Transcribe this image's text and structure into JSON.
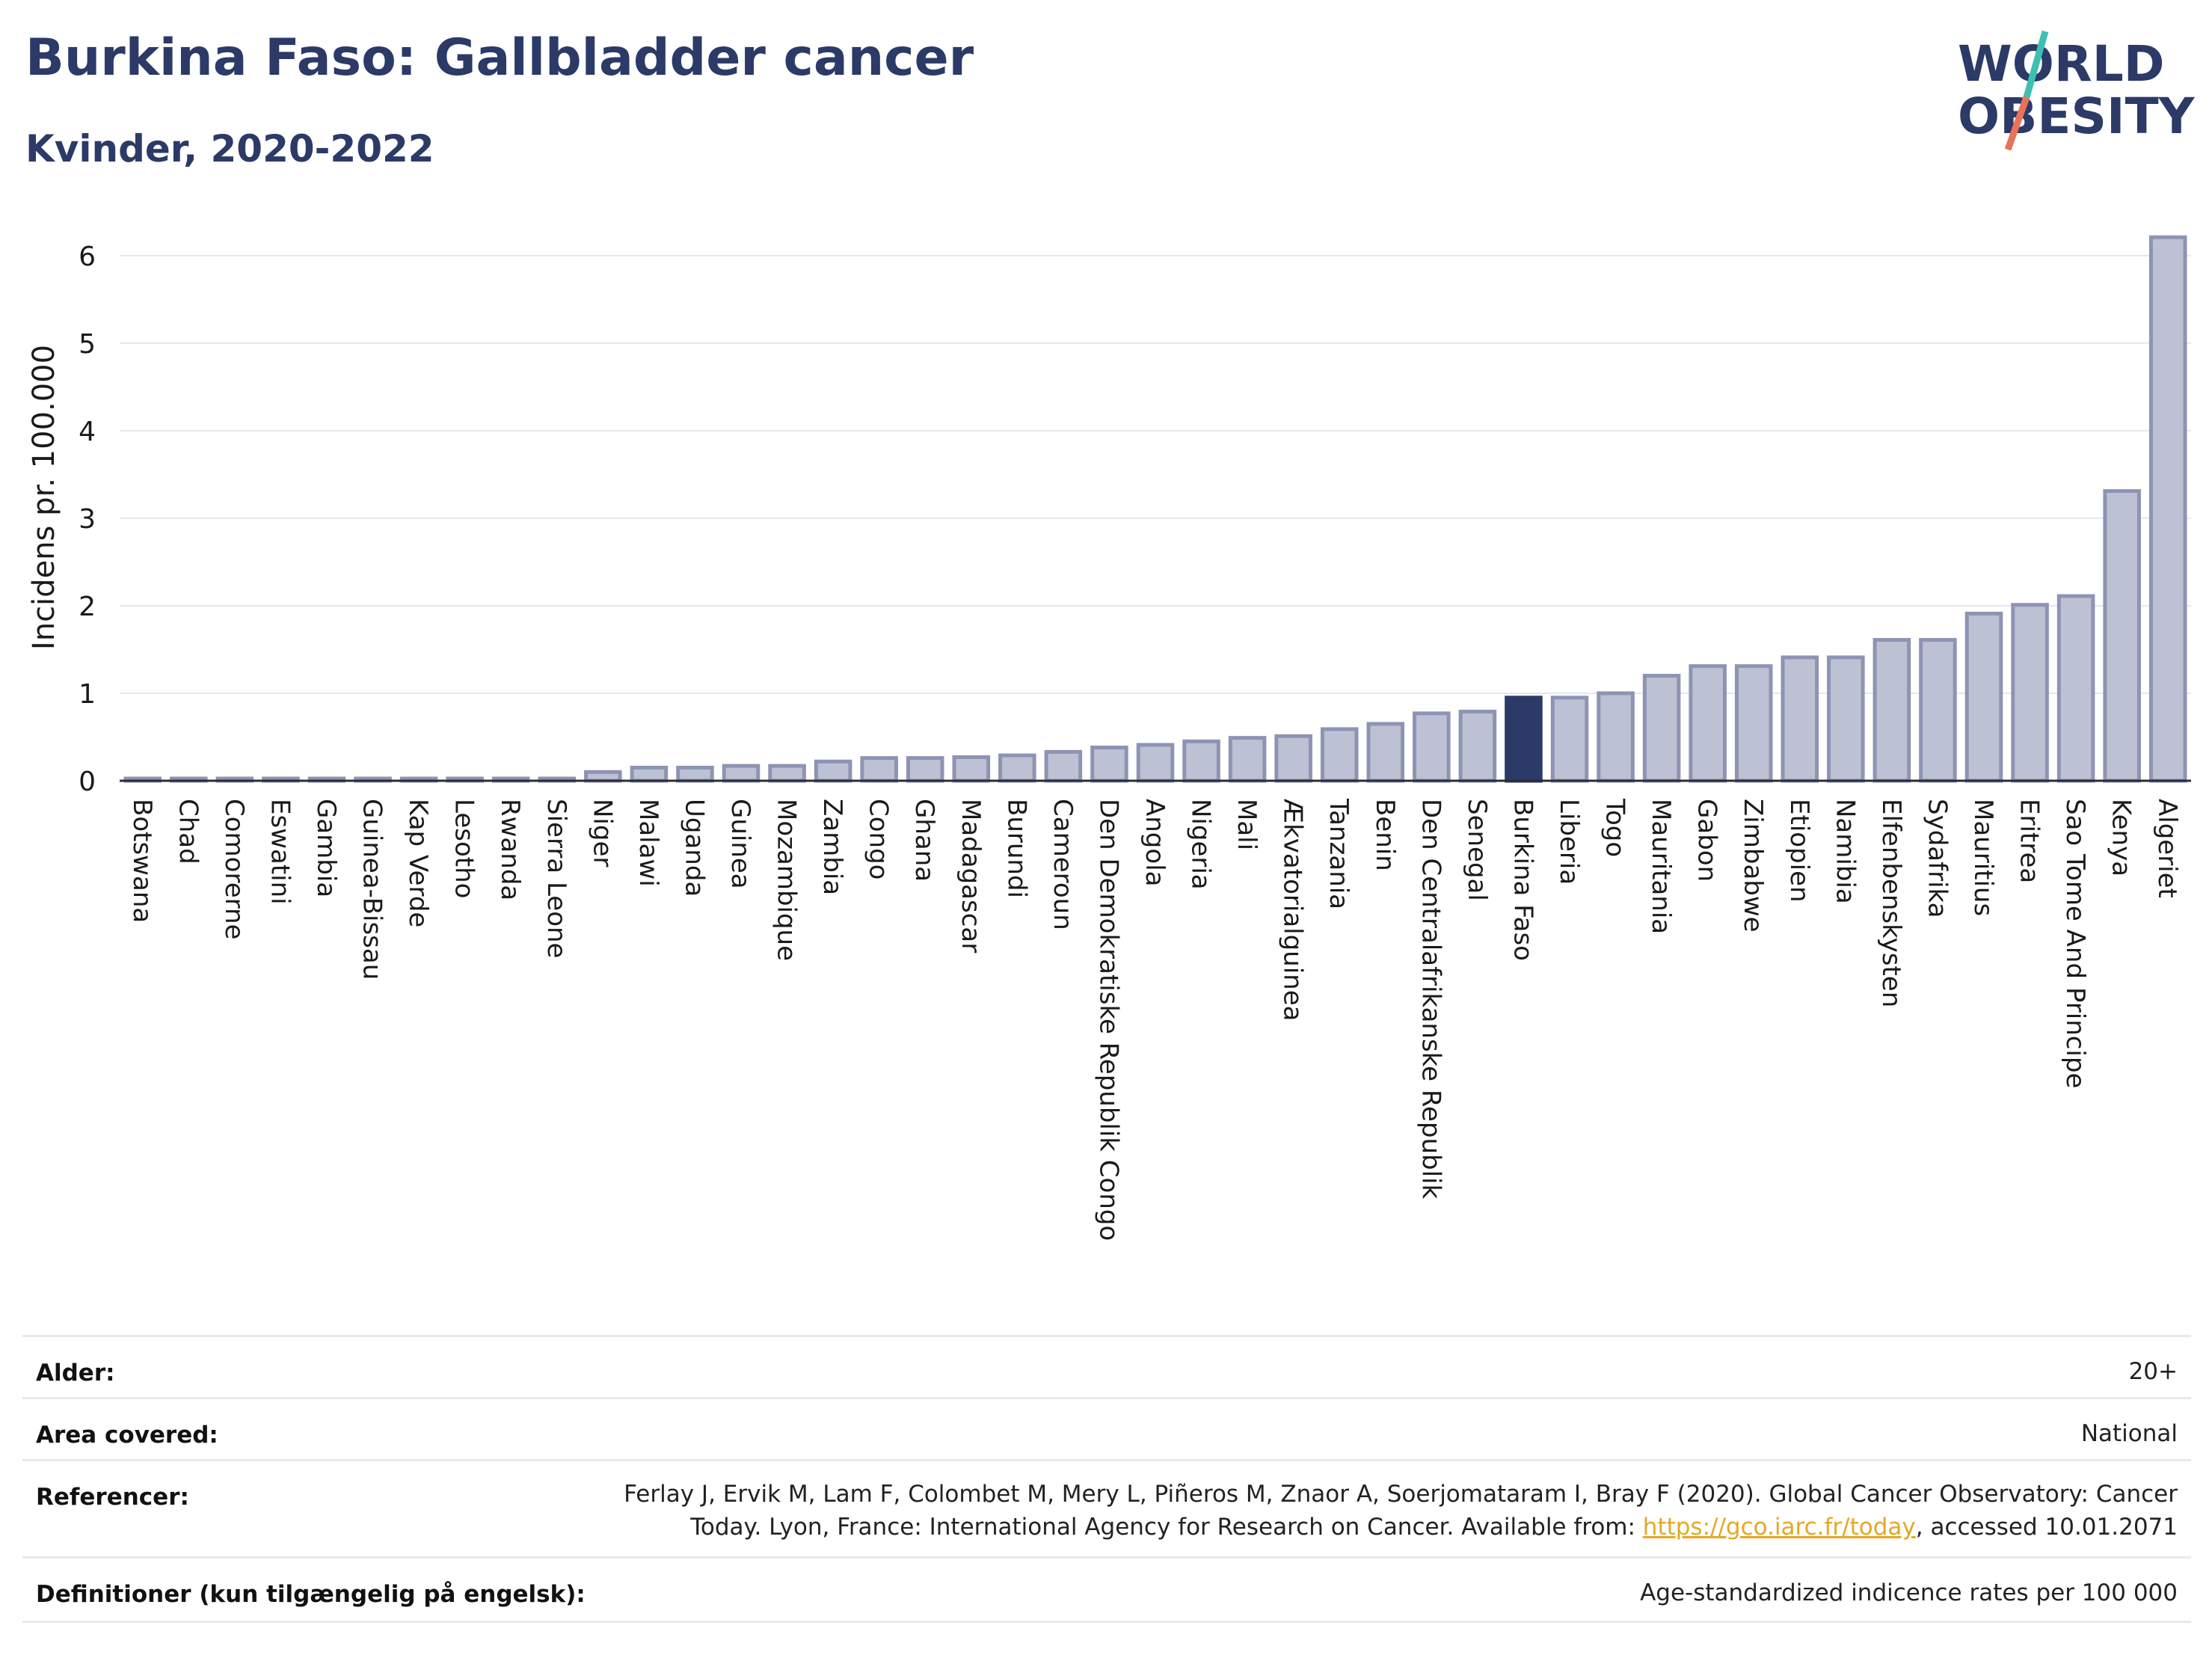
{
  "header": {
    "title": "Burkina Faso: Gallbladder cancer",
    "subtitle": "Kvinder, 2020-2022"
  },
  "logo": {
    "line1": "WORLD",
    "line2": "OBESITY",
    "accent_colors": [
      "#3fbfb0",
      "#e8735a"
    ]
  },
  "colors": {
    "bar": "#bcc1d3",
    "bar_stroke": "#8d94b3",
    "highlight": "#2b3a67",
    "grid": "#e6e6ee",
    "text": "#1a1a1a"
  },
  "chart_data": {
    "type": "bar",
    "title": "",
    "ylabel": "Incidens pr. 100.000",
    "xlabel": "",
    "ylim": [
      0,
      6.4
    ],
    "yticks": [
      0,
      1,
      2,
      3,
      4,
      5,
      6
    ],
    "grid": true,
    "highlight": "Burkina Faso",
    "categories": [
      "Botswana",
      "Chad",
      "Comorerne",
      "Eswatini",
      "Gambia",
      "Guinea-Bissau",
      "Kap Verde",
      "Lesotho",
      "Rwanda",
      "Sierra Leone",
      "Niger",
      "Malawi",
      "Uganda",
      "Guinea",
      "Mozambique",
      "Zambia",
      "Congo",
      "Ghana",
      "Madagascar",
      "Burundi",
      "Cameroun",
      "Den Demokratiske Republik Congo",
      "Angola",
      "Nigeria",
      "Mali",
      "Ækvatorialguinea",
      "Tanzania",
      "Benin",
      "Den Centralafrikanske Republik",
      "Senegal",
      "Burkina Faso",
      "Liberia",
      "Togo",
      "Mauritania",
      "Gabon",
      "Zimbabwe",
      "Etiopien",
      "Namibia",
      "Elfenbenskysten",
      "Sydafrika",
      "Mauritius",
      "Eritrea",
      "Sao Tome And Principe",
      "Kenya",
      "Algeriet"
    ],
    "values": [
      0.02,
      0.02,
      0.02,
      0.02,
      0.02,
      0.02,
      0.02,
      0.02,
      0.02,
      0.02,
      0.1,
      0.15,
      0.15,
      0.17,
      0.17,
      0.22,
      0.26,
      0.26,
      0.27,
      0.29,
      0.33,
      0.38,
      0.41,
      0.45,
      0.49,
      0.51,
      0.59,
      0.65,
      0.77,
      0.79,
      0.95,
      0.95,
      1.0,
      1.2,
      1.31,
      1.31,
      1.41,
      1.41,
      1.61,
      1.61,
      1.91,
      2.01,
      2.11,
      3.31,
      6.21
    ]
  },
  "meta": {
    "rows": [
      {
        "label": "Alder:",
        "value": "20+"
      },
      {
        "label": "Area covered:",
        "value": "National"
      },
      {
        "label": "Referencer:",
        "value_line1": "Ferlay J, Ervik M, Lam F, Colombet M, Mery L, Piñeros M, Znaor A, Soerjomataram I, Bray F (2020). Global Cancer Observatory: Cancer",
        "value_line2_pre": "Today. Lyon, France: International Agency for Research on Cancer. Available from: ",
        "link": "https://gco.iarc.fr/today",
        "value_line2_post": ", accessed 10.01.2071"
      },
      {
        "label": "Definitioner (kun tilgængelig på engelsk):",
        "value": "Age-standardized indicence rates per 100 000"
      }
    ]
  }
}
